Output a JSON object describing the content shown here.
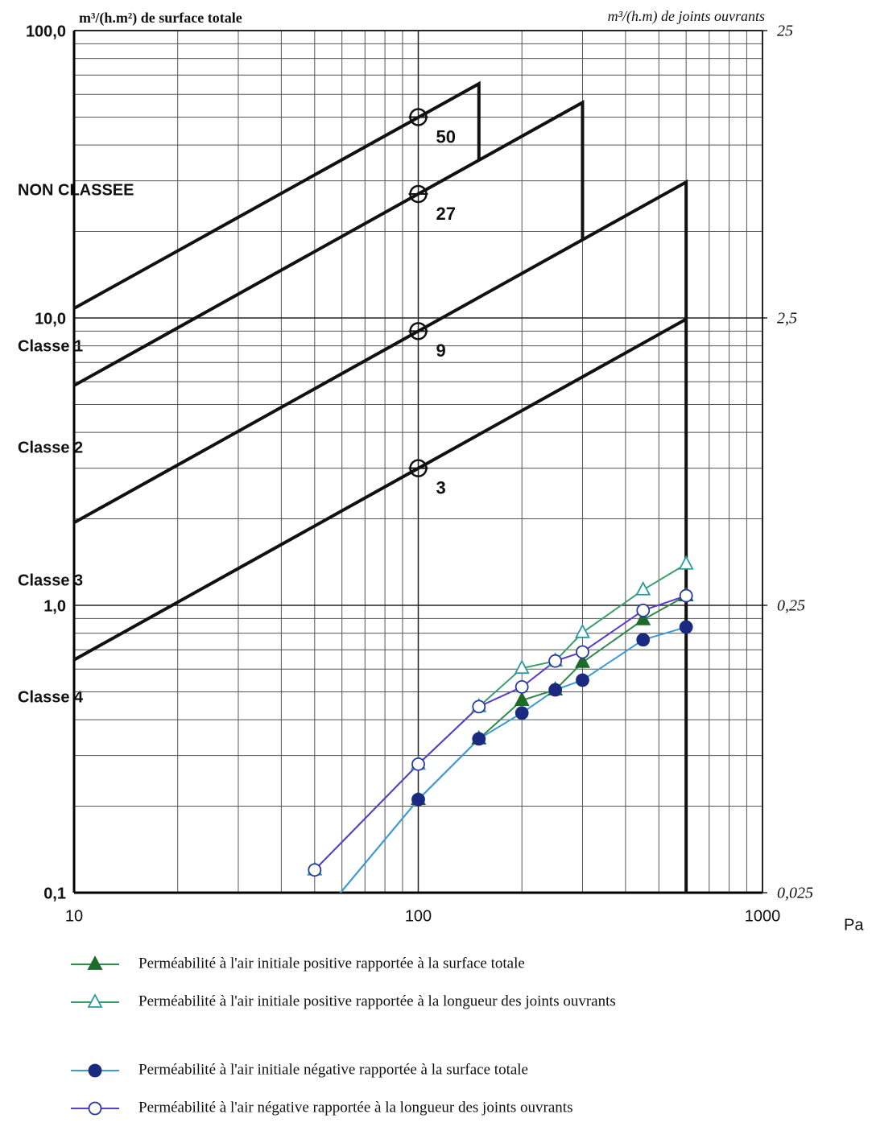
{
  "chart_data": {
    "type": "line",
    "y_label": "m³/(h.m²) de surface totale",
    "y2_label": "m³/(h.m) de joints ouvrants",
    "x_label": "Pa",
    "log_x": true,
    "log_y": true,
    "grid": true,
    "xlim": [
      10,
      1000
    ],
    "xticks": [
      10,
      100,
      1000
    ],
    "ylim": [
      0.1,
      100
    ],
    "yticks": [
      {
        "value": 0.1,
        "label": "0,1"
      },
      {
        "value": 1,
        "label": "1,0"
      },
      {
        "value": 10,
        "label": "10,0"
      },
      {
        "value": 100,
        "label": "100,0"
      }
    ],
    "y2lim": [
      0.025,
      25
    ],
    "y2ticks": [
      {
        "value": 0.025,
        "label": "0,025"
      },
      {
        "value": 0.25,
        "label": "0,25"
      },
      {
        "value": 2.5,
        "label": "2,5"
      },
      25
    ],
    "zone_labels": [
      "NON CLASSEE",
      "Classe 1",
      "Classe 2",
      "Classe 3",
      "Classe 4"
    ],
    "classes": [
      {
        "value": 50,
        "pressure": 100,
        "x": [
          10,
          150,
          150
        ],
        "y": [
          10.8,
          65.3,
          35.4
        ]
      },
      {
        "value": 27,
        "pressure": 100,
        "x": [
          10,
          300,
          300
        ],
        "y": [
          5.82,
          56.2,
          18.7
        ]
      },
      {
        "value": 9,
        "pressure": 100,
        "x": [
          10,
          600,
          600
        ],
        "y": [
          1.94,
          29.7,
          0.1
        ]
      },
      {
        "value": 3,
        "pressure": 100,
        "x": [
          10,
          600
        ],
        "y": [
          0.646,
          9.9
        ]
      }
    ],
    "x": [
      50,
      100,
      150,
      200,
      250,
      300,
      450,
      600
    ],
    "series": [
      {
        "name": "Perméabilité à l'air initiale positive rapportée à la surface totale",
        "color": "#2e8b4a",
        "marker_color": "#1e6a2a",
        "marker": "triangle",
        "filled": true,
        "values": [
          0.078,
          0.211,
          0.343,
          0.467,
          0.508,
          0.633,
          0.891,
          1.08
        ]
      },
      {
        "name": "Perméabilité à l'air initiale positive rapportée à la longueur des joints ouvrants",
        "color": "#3a9f6a",
        "marker_color": "#2a9aa0",
        "marker": "triangle",
        "filled": false,
        "axis": "y2",
        "values": [
          0.03,
          0.07,
          0.111,
          0.151,
          0.16,
          0.201,
          0.283,
          0.348
        ]
      },
      {
        "name": "Perméabilité à l'air initiale négative rapportée à la surface totale",
        "color": "#3c9ad8",
        "marker_color": "#1a2a80",
        "marker": "circle",
        "filled": true,
        "values": [
          0.078,
          0.211,
          0.343,
          0.422,
          0.508,
          0.549,
          0.759,
          0.84
        ]
      },
      {
        "name": "Perméabilité à l'air négative rapportée à la longueur des joints ouvrants",
        "color": "#5a3cc8",
        "marker_color": "#2a3aa0",
        "marker": "circle",
        "filled": false,
        "axis": "y2",
        "values": [
          0.03,
          0.07,
          0.111,
          0.13,
          0.16,
          0.172,
          0.24,
          0.27
        ]
      }
    ]
  }
}
